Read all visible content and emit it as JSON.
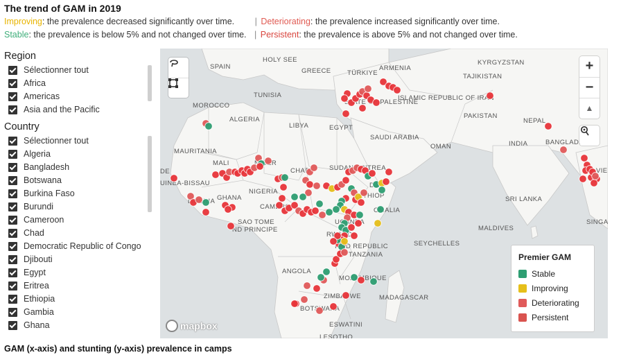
{
  "title": "The trend of GAM in 2019",
  "legend_text": {
    "improving_label": "Improving",
    "improving_desc": ": the prevalence decreased significantly over time.",
    "deteriorating_label": "Deteriorating",
    "deteriorating_desc": ": the prevalence increased significantly over time.",
    "stable_label": "Stable",
    "stable_desc": ": the prevalence is below 5% and not changed over time.",
    "persistent_label": "Persistent",
    "persistent_desc": ": the prevalence is above 5% and not changed over time.",
    "separator": "|"
  },
  "filters": {
    "region_heading": "Region",
    "region_items": [
      "Sélectionner tout",
      "Africa",
      "Americas",
      "Asia and the Pacific"
    ],
    "country_heading": "Country",
    "country_items": [
      "Sélectionner tout",
      "Algeria",
      "Bangladesh",
      "Botswana",
      "Burkina Faso",
      "Burundi",
      "Cameroon",
      "Chad",
      "Democratic Republic of Congo",
      "Djibouti",
      "Egypt",
      "Eritrea",
      "Ethiopia",
      "Gambia",
      "Ghana"
    ]
  },
  "map": {
    "labels": {
      "spain": "Spain",
      "holy_see": "Holy See",
      "greece": "Greece",
      "turkiye": "Türkiye",
      "armenia": "Armenia",
      "kyrgyzstan": "Kyrgyzstan",
      "tajikistan": "Tajikistan",
      "tunisia": "Tunisia",
      "morocco": "Morocco",
      "state_of_palestine": "State of Palestine",
      "iran": "Islamic Republic of Iran",
      "algeria": "Algeria",
      "libya": "Libya",
      "egypt": "Egypt",
      "pakistan": "Pakistan",
      "nepal": "Nepal",
      "saudi_arabia": "Saudi Arabia",
      "oman": "Oman",
      "india": "India",
      "bangladesh": "Bangladesh",
      "mauritania": "Mauritania",
      "mali": "Mali",
      "niger": "Niger",
      "chad": "Chad",
      "sudan": "Sudan",
      "eritrea": "Eritrea",
      "de": "de",
      "guinea_bissau": "uinea-Bissau",
      "nigeria": "Nigeria",
      "ethiopia": "Ethiop",
      "dj": "DJ",
      "vie": "Vie",
      "sri_lanka": "Sri Lanka",
      "liberia": "Liberia",
      "ghana": "Ghana",
      "cameroon": "Camero",
      "somalia": "omalia",
      "sao_tome": "Sao Tome",
      "principe": "nd Principe",
      "uganda": "Uganda",
      "maldives": "Maldives",
      "singa": "Singa",
      "rwanda": "Rwanda",
      "tanzania": "ited Republic",
      "tanzania2": "of Tanzania",
      "seychelles": "Seychelles",
      "angola": "Angola",
      "mozambique": "Mozambique",
      "madagascar": "Madagascar",
      "zimbabwe": "Zimbabwe",
      "botswana": "Botswana",
      "eswatini": "Eswatini",
      "lesotho": "Lesotho"
    },
    "attribution": "mapbox",
    "controls": {
      "zoom_in": "+",
      "zoom_out": "−",
      "compass": "▲"
    },
    "colors": {
      "stable": "#2e9e72",
      "improving": "#e6bf1a",
      "deteriorating": "#e05a5a",
      "persistent": "#e8353a"
    }
  },
  "legend": {
    "title": "Premier GAM",
    "items": [
      {
        "label": "Stable",
        "color": "#2e9e72"
      },
      {
        "label": "Improving",
        "color": "#e6bf1a"
      },
      {
        "label": "Deteriorating",
        "color": "#e05a5a"
      },
      {
        "label": "Persistent",
        "color": "#d9534f"
      }
    ]
  },
  "bottom_title": "GAM (x-axis) and stunting (y-axis) prevalence in camps"
}
